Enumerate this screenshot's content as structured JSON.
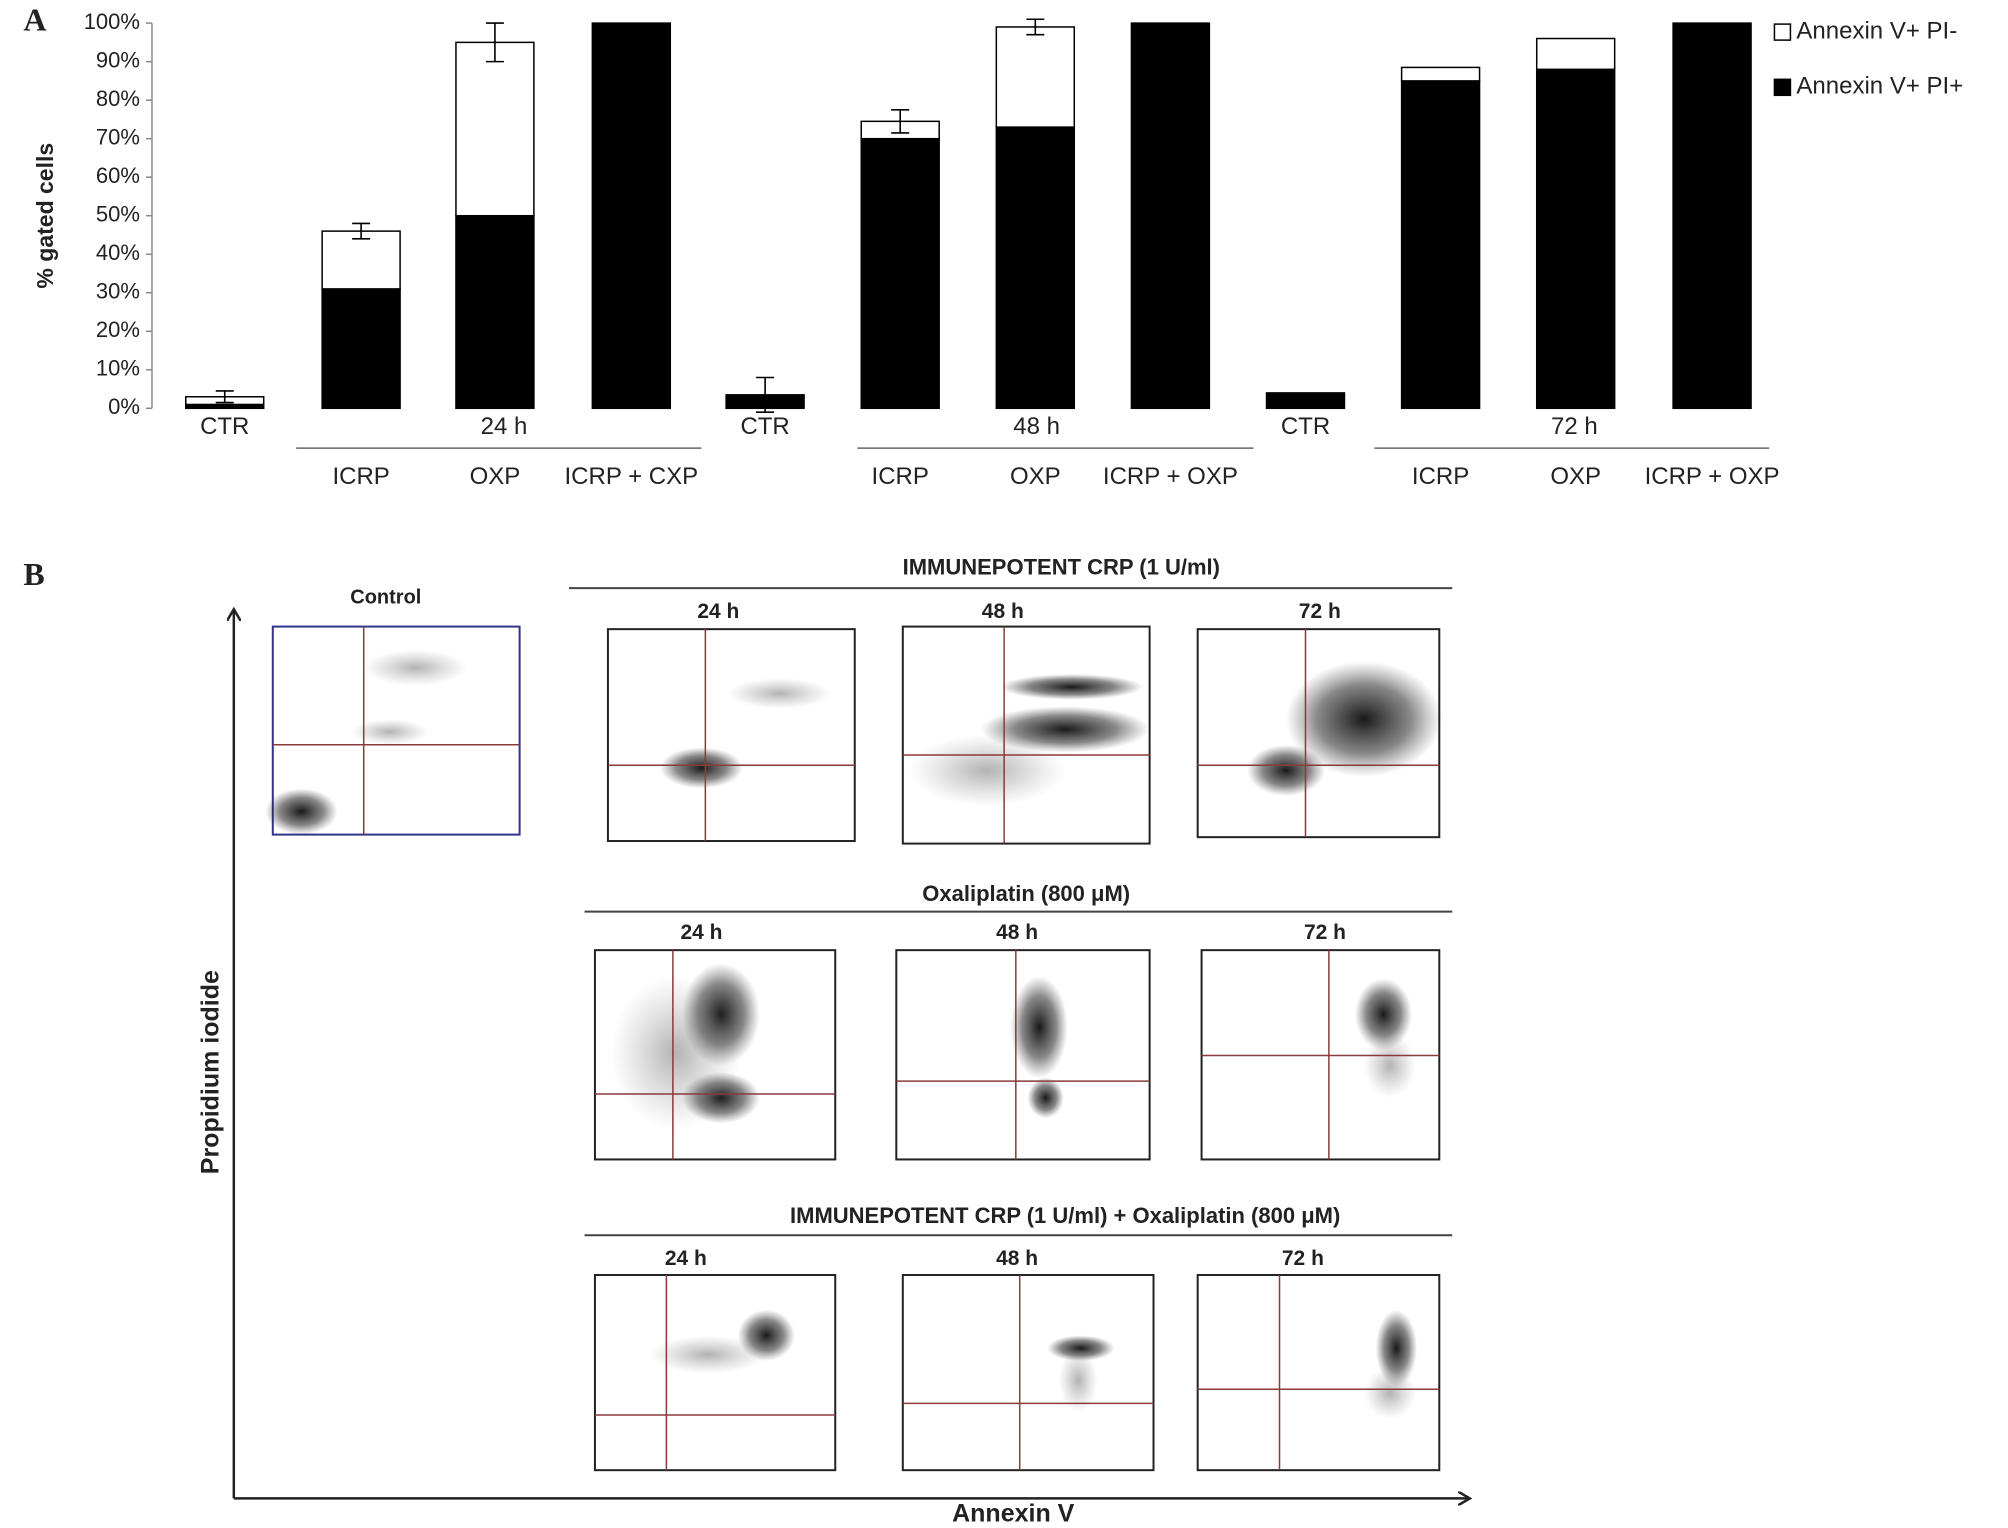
{
  "panel_labels": [
    "A",
    "B"
  ],
  "chart_data": {
    "type": "stacked_bar",
    "y_label": "% gated cells",
    "categories": [
      "CTR",
      "ICRP",
      "OXP",
      "ICRP + CXP",
      "CTR",
      "ICRP",
      "OXP",
      "ICRP + OXP",
      "CTR",
      "ICRP",
      "OXP",
      "ICRP + OXP"
    ],
    "group_labels": [
      "24 h",
      "48 h",
      "72 h"
    ],
    "series": [
      {
        "name": "Annexin V+ PI-",
        "color": "#ffffff",
        "values": [
          2,
          15,
          45,
          0,
          0,
          4.5,
          26,
          0,
          0,
          3.5,
          8,
          0
        ],
        "errors": [
          1.5,
          2,
          5,
          null,
          4.5,
          3,
          2,
          null,
          null,
          null,
          null,
          null
        ]
      },
      {
        "name": "Annexin V+ PI+",
        "color": "#000000",
        "values": [
          1,
          31,
          50,
          100,
          3.5,
          70,
          73,
          100,
          4,
          85,
          88,
          100
        ]
      }
    ],
    "ylim": [
      0,
      100
    ],
    "yticks": [
      {
        "value": 0,
        "label": "0%"
      },
      {
        "value": 10,
        "label": "10%"
      },
      {
        "value": 20,
        "label": "20%"
      },
      {
        "value": 30,
        "label": "30%"
      },
      {
        "value": 40,
        "label": "40%"
      },
      {
        "value": 50,
        "label": "50%"
      },
      {
        "value": 60,
        "label": "60%"
      },
      {
        "value": 70,
        "label": "70%"
      },
      {
        "value": 80,
        "label": "80%"
      },
      {
        "value": 90,
        "label": "90%"
      },
      {
        "value": 100,
        "label": "100%"
      }
    ],
    "legend": "top-right"
  },
  "flow": {
    "y_label": "Propidium iodide",
    "x_label": "Annexin V",
    "control": "Control",
    "rows": [
      {
        "title": "IMMUNEPOTENT CRP (1 U/ml)",
        "times": [
          "24 h",
          "48 h",
          "72 h"
        ]
      },
      {
        "title": "Oxaliplatin  (800 μM)",
        "times": [
          "24 h",
          "48 h",
          "72 h"
        ]
      },
      {
        "title": "IMMUNEPOTENT CRP (1 U/ml) + Oxaliplatin  (800 μM)",
        "times": [
          "24 h",
          "48 h",
          "72 h"
        ]
      }
    ]
  }
}
